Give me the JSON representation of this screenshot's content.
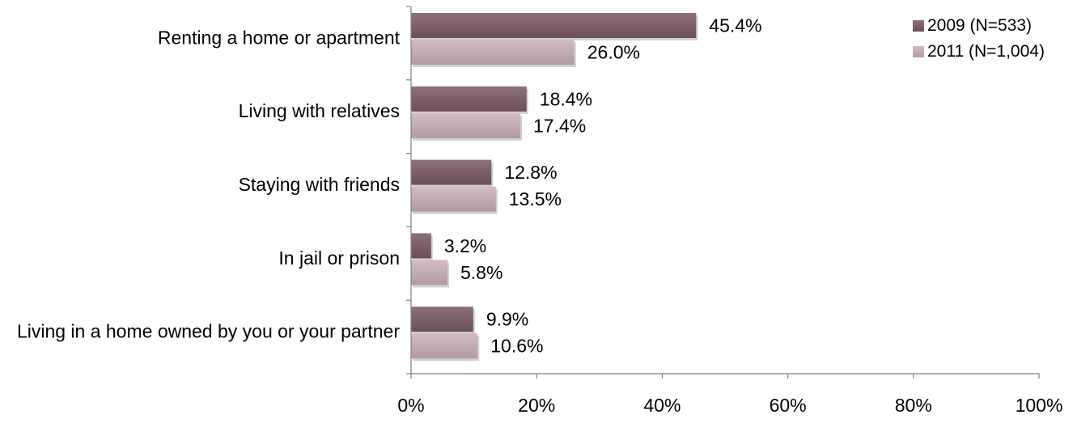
{
  "chart_data": {
    "type": "bar",
    "orientation": "horizontal",
    "title": "",
    "xlabel": "",
    "ylabel": "",
    "xlim": [
      0,
      100
    ],
    "x_ticks": [
      "0%",
      "20%",
      "40%",
      "60%",
      "80%",
      "100%"
    ],
    "grid": false,
    "legend_position": "top-right",
    "categories": [
      "Renting a home or apartment",
      "Living with relatives",
      "Staying with friends",
      "In jail or prison",
      "Living in a home owned by you or your partner"
    ],
    "series": [
      {
        "name": "2009 (N=533)",
        "color": "#7a5c66",
        "values": [
          45.4,
          18.4,
          12.8,
          3.2,
          9.9
        ],
        "labels": [
          "45.4%",
          "18.4%",
          "12.8%",
          "3.2%",
          "9.9%"
        ]
      },
      {
        "name": "2011 (N=1,004)",
        "color": "#c2a9b0",
        "values": [
          26.0,
          17.4,
          13.5,
          5.8,
          10.6
        ],
        "labels": [
          "26.0%",
          "17.4%",
          "13.5%",
          "5.8%",
          "10.6%"
        ]
      }
    ]
  }
}
